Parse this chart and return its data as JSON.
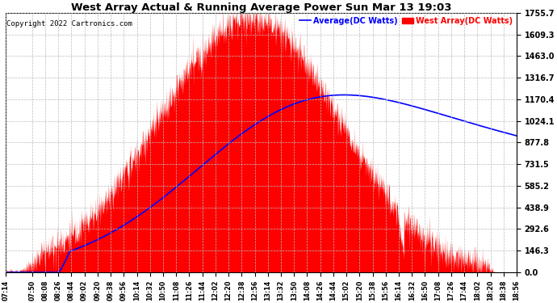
{
  "title": "West Array Actual & Running Average Power Sun Mar 13 19:03",
  "copyright": "Copyright 2022 Cartronics.com",
  "legend_avg": "Average(DC Watts)",
  "legend_west": "West Array(DC Watts)",
  "ylabel_values": [
    0.0,
    146.3,
    292.6,
    438.9,
    585.2,
    731.5,
    877.8,
    1024.1,
    1170.4,
    1316.7,
    1463.0,
    1609.3,
    1755.7
  ],
  "ymax": 1755.7,
  "ymin": 0.0,
  "x_tick_labels": [
    "07:14",
    "07:50",
    "08:08",
    "08:26",
    "08:44",
    "09:02",
    "09:20",
    "09:38",
    "09:56",
    "10:14",
    "10:32",
    "10:50",
    "11:08",
    "11:26",
    "11:44",
    "12:02",
    "12:20",
    "12:38",
    "12:56",
    "13:14",
    "13:32",
    "13:50",
    "14:08",
    "14:26",
    "14:44",
    "15:02",
    "15:20",
    "15:38",
    "15:56",
    "16:14",
    "16:32",
    "16:50",
    "17:08",
    "17:26",
    "17:44",
    "18:02",
    "18:20",
    "18:38",
    "18:56"
  ],
  "background_color": "#ffffff",
  "grid_color": "#bbbbbb",
  "fill_color": "#ff0000",
  "line_color": "#0000ff",
  "title_color": "#000000",
  "copyright_color": "#000000",
  "legend_avg_color": "#0000ff",
  "legend_west_color": "#ff0000",
  "figwidth": 6.9,
  "figheight": 3.75,
  "dpi": 100
}
